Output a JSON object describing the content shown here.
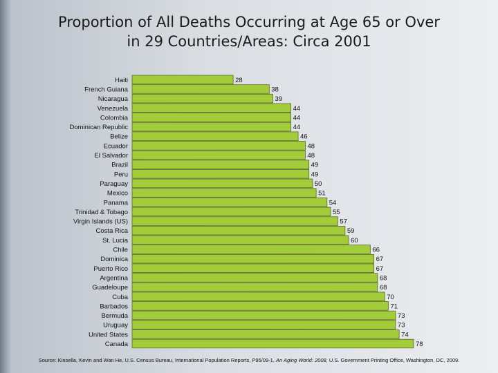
{
  "title": {
    "line1": "Proportion of All Deaths Occurring at Age 65 or Over",
    "line2": "in 29 Countries/Areas: Circa 2001"
  },
  "source": {
    "prefix": "Source: Kinsella, Kevin and Wan He, U.S. Census Bureau, International Population Reports, P95/09-1,",
    "italic": "An Aging World: 2008",
    "suffix": ", U.S. Government Printing Office, Washington, DC, 2009."
  },
  "colors": {
    "bar_fill": "#a3cc3a",
    "bar_stroke": "#5a6b22"
  },
  "chart_data": {
    "type": "bar",
    "orientation": "horizontal",
    "title": "Proportion of All Deaths Occurring at Age 65 or Over in 29 Countries/Areas: Circa 2001",
    "xlabel": "",
    "ylabel": "",
    "xlim": [
      0,
      80
    ],
    "grid": false,
    "categories": [
      "Haiti",
      "French Guiana",
      "Nicaragua",
      "Venezuela",
      "Colombia",
      "Dominican Republic",
      "Belize",
      "Ecuador",
      "El Salvador",
      "Brazil",
      "Peru",
      "Paraguay",
      "Mexico",
      "Panama",
      "Trinidad & Tobago",
      "Virgin Islands (US)",
      "Costa Rica",
      "St. Lucia",
      "Chile",
      "Dominica",
      "Puerto Rico",
      "Argentina",
      "Guadeloupe",
      "Cuba",
      "Barbados",
      "Bermuda",
      "Uruguay",
      "United States",
      "Canada"
    ],
    "values": [
      28,
      38,
      39,
      44,
      44,
      44,
      46,
      48,
      48,
      49,
      49,
      50,
      51,
      54,
      55,
      57,
      59,
      60,
      66,
      67,
      67,
      68,
      68,
      70,
      71,
      73,
      73,
      74,
      78
    ]
  }
}
